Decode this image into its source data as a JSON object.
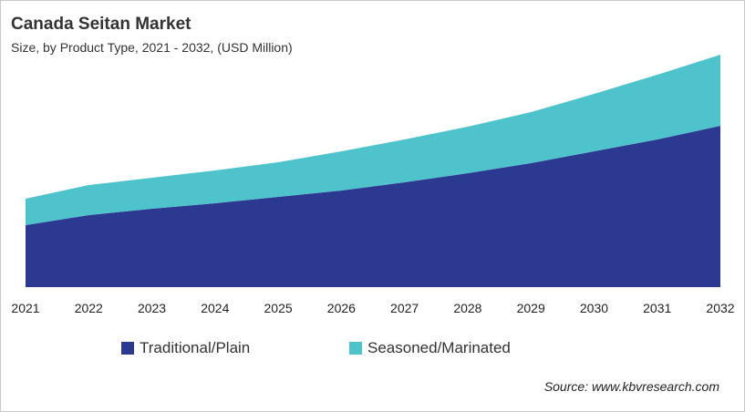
{
  "title": "Canada Seitan Market",
  "subtitle": "Size, by Product Type, 2021 - 2032, (USD Million)",
  "source": "Source: www.kbvresearch.com",
  "chart_data": {
    "type": "area",
    "stacked": true,
    "title": "Canada Seitan Market",
    "subtitle": "Size, by Product Type, 2021 - 2032, (USD Million)",
    "categories": [
      "2021",
      "2022",
      "2023",
      "2024",
      "2025",
      "2026",
      "2027",
      "2028",
      "2029",
      "2030",
      "2031",
      "2032"
    ],
    "series": [
      {
        "name": "Traditional/Plain",
        "color": "#2b3990",
        "values": [
          68,
          79,
          86,
          92,
          99,
          106,
          115,
          125,
          136,
          149,
          162,
          177
        ]
      },
      {
        "name": "Seasoned/Marinated",
        "color": "#4fc3cc",
        "values": [
          29,
          33,
          34,
          36,
          38,
          43,
          47,
          51,
          56,
          63,
          71,
          78
        ]
      }
    ],
    "y_axis_visible": false,
    "grid": false,
    "legend_position": "bottom"
  }
}
